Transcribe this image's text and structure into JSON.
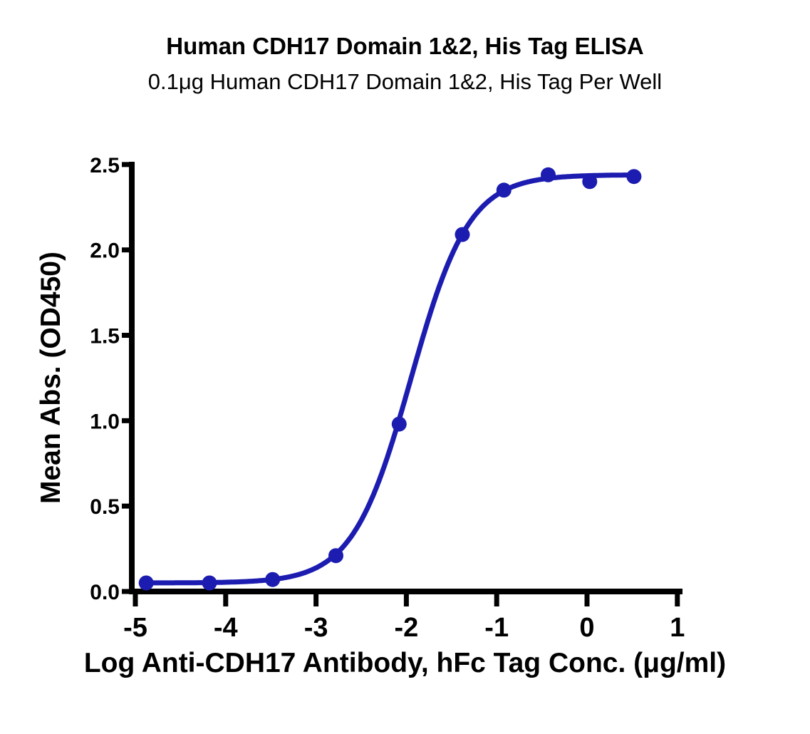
{
  "chart_data": {
    "type": "scatter-line-dose-response",
    "title": "Human CDH17 Domain 1&2, His Tag ELISA",
    "subtitle": "0.1μg Human CDH17 Domain 1&2, His Tag Per Well",
    "xlabel": "Log Anti-CDH17 Antibody, hFc Tag Conc. (μg/ml)",
    "ylabel": "Mean Abs. (OD450)",
    "series": [
      {
        "color": "#1c1cb0",
        "x": [
          -4.88,
          -4.18,
          -3.48,
          -2.78,
          -2.08,
          -1.38,
          -0.92,
          -0.43,
          0.03,
          0.52
        ],
        "y": [
          0.05,
          0.05,
          0.07,
          0.21,
          0.98,
          2.09,
          2.35,
          2.44,
          2.4,
          2.43
        ]
      }
    ],
    "curve_fit_4pl": {
      "bottom": 0.05,
      "top": 2.44,
      "log_ec50": -1.95,
      "hill_slope": 1.35
    },
    "xlim": [
      -5.07,
      1.06
    ],
    "ylim": [
      0,
      2.5
    ],
    "xticks": [
      "-5",
      "-4",
      "-3",
      "-2",
      "-1",
      "0",
      "1"
    ],
    "yticks": [
      "0.0",
      "0.5",
      "1.0",
      "1.5",
      "2.0",
      "2.5"
    ],
    "grid": false,
    "legend": "none",
    "axis_color": "#000000",
    "background_color": "#ffffff"
  }
}
